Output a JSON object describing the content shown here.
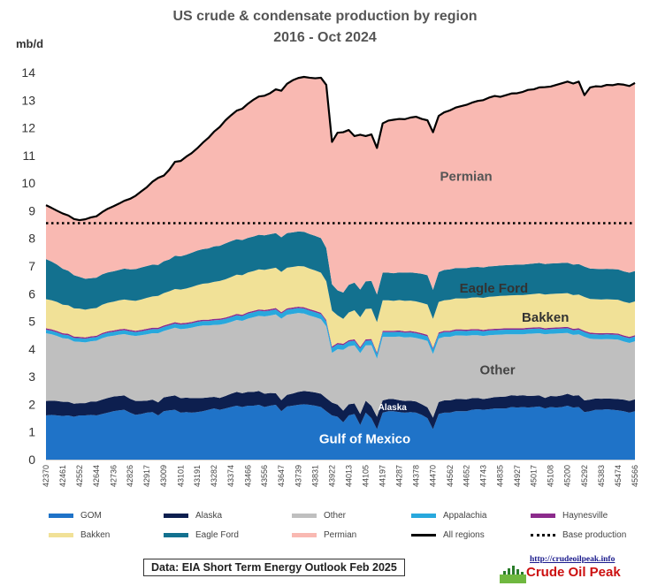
{
  "chart_data": {
    "type": "area",
    "title": "US crude & condensate production by region",
    "subtitle": "2016 - Oct 2024",
    "ylabel": "mb/d",
    "ylim": [
      0,
      14
    ],
    "y_ticks": [
      "0",
      "1",
      "2",
      "3",
      "4",
      "5",
      "6",
      "7",
      "8",
      "9",
      "10",
      "11",
      "12",
      "13",
      "14"
    ],
    "x_tick_labels": [
      "42370",
      "42461",
      "42552",
      "42644",
      "42736",
      "42826",
      "42917",
      "43009",
      "43101",
      "43191",
      "43282",
      "43374",
      "43466",
      "43556",
      "43647",
      "43739",
      "43831",
      "43922",
      "44013",
      "44105",
      "44197",
      "44287",
      "44378",
      "44470",
      "44562",
      "44652",
      "44743",
      "44835",
      "44927",
      "45017",
      "45108",
      "45200",
      "45292",
      "45383",
      "45474",
      "45566"
    ],
    "x": [
      42370,
      42401,
      42430,
      42461,
      42491,
      42522,
      42552,
      42583,
      42614,
      42644,
      42675,
      42705,
      42736,
      42767,
      42795,
      42826,
      42856,
      42887,
      42917,
      42948,
      42979,
      43009,
      43040,
      43070,
      43101,
      43132,
      43160,
      43191,
      43221,
      43252,
      43282,
      43313,
      43344,
      43374,
      43405,
      43435,
      43466,
      43497,
      43525,
      43556,
      43586,
      43617,
      43647,
      43678,
      43709,
      43739,
      43770,
      43800,
      43831,
      43862,
      43891,
      43922,
      43952,
      43983,
      44013,
      44044,
      44075,
      44105,
      44136,
      44166,
      44197,
      44228,
      44256,
      44287,
      44317,
      44348,
      44378,
      44409,
      44440,
      44470,
      44501,
      44531,
      44562,
      44593,
      44621,
      44652,
      44682,
      44713,
      44743,
      44774,
      44805,
      44835,
      44866,
      44896,
      44927,
      44958,
      44986,
      45017,
      45047,
      45078,
      45108,
      45139,
      45170,
      45200,
      45231,
      45261,
      45292,
      45323,
      45352,
      45383,
      45413,
      45444,
      45474,
      45505,
      45536,
      45566
    ],
    "stack_order": [
      "GOM",
      "Alaska",
      "Other",
      "Appalachia",
      "Haynesville",
      "Bakken",
      "Eagle Ford",
      "Permian"
    ],
    "series": [
      {
        "name": "GOM",
        "color": "#1f73c8",
        "values": [
          1.6,
          1.62,
          1.6,
          1.58,
          1.6,
          1.55,
          1.6,
          1.6,
          1.62,
          1.6,
          1.65,
          1.7,
          1.75,
          1.78,
          1.8,
          1.7,
          1.62,
          1.65,
          1.7,
          1.72,
          1.6,
          1.75,
          1.78,
          1.8,
          1.7,
          1.72,
          1.7,
          1.72,
          1.75,
          1.8,
          1.85,
          1.8,
          1.85,
          1.9,
          1.95,
          1.9,
          1.95,
          1.95,
          1.98,
          1.9,
          1.95,
          1.98,
          1.75,
          1.92,
          1.95,
          1.98,
          2.0,
          1.98,
          1.95,
          1.9,
          1.75,
          1.6,
          1.55,
          1.35,
          1.6,
          1.65,
          1.25,
          1.7,
          1.5,
          1.1,
          1.7,
          1.75,
          1.75,
          1.72,
          1.7,
          1.72,
          1.7,
          1.62,
          1.5,
          1.1,
          1.65,
          1.7,
          1.7,
          1.75,
          1.75,
          1.75,
          1.8,
          1.82,
          1.8,
          1.82,
          1.85,
          1.85,
          1.85,
          1.9,
          1.88,
          1.9,
          1.88,
          1.9,
          1.92,
          1.85,
          1.9,
          1.88,
          1.9,
          1.95,
          1.88,
          1.9,
          1.72,
          1.75,
          1.8,
          1.8,
          1.82,
          1.8,
          1.78,
          1.75,
          1.7,
          1.75
        ]
      },
      {
        "name": "Alaska",
        "color": "#0d1f4f",
        "values": [
          0.52,
          0.51,
          0.52,
          0.51,
          0.49,
          0.47,
          0.44,
          0.44,
          0.48,
          0.5,
          0.52,
          0.53,
          0.53,
          0.52,
          0.52,
          0.5,
          0.5,
          0.47,
          0.43,
          0.45,
          0.47,
          0.5,
          0.51,
          0.52,
          0.52,
          0.52,
          0.52,
          0.5,
          0.48,
          0.45,
          0.42,
          0.43,
          0.45,
          0.48,
          0.5,
          0.5,
          0.5,
          0.5,
          0.5,
          0.48,
          0.46,
          0.42,
          0.4,
          0.42,
          0.44,
          0.47,
          0.48,
          0.48,
          0.48,
          0.48,
          0.47,
          0.46,
          0.44,
          0.42,
          0.4,
          0.38,
          0.4,
          0.43,
          0.44,
          0.45,
          0.44,
          0.44,
          0.44,
          0.43,
          0.42,
          0.41,
          0.4,
          0.38,
          0.39,
          0.42,
          0.43,
          0.44,
          0.44,
          0.44,
          0.44,
          0.43,
          0.42,
          0.41,
          0.39,
          0.4,
          0.41,
          0.42,
          0.43,
          0.43,
          0.43,
          0.43,
          0.42,
          0.41,
          0.4,
          0.38,
          0.4,
          0.41,
          0.42,
          0.43,
          0.43,
          0.43,
          0.42,
          0.42,
          0.41,
          0.4,
          0.39,
          0.4,
          0.41,
          0.42,
          0.42,
          0.43
        ]
      },
      {
        "name": "Other",
        "color": "#bfbfbf",
        "values": [
          2.45,
          2.4,
          2.35,
          2.3,
          2.28,
          2.25,
          2.22,
          2.2,
          2.18,
          2.2,
          2.22,
          2.22,
          2.2,
          2.22,
          2.22,
          2.3,
          2.35,
          2.38,
          2.4,
          2.4,
          2.5,
          2.4,
          2.42,
          2.45,
          2.5,
          2.5,
          2.55,
          2.6,
          2.62,
          2.6,
          2.6,
          2.65,
          2.62,
          2.6,
          2.6,
          2.62,
          2.65,
          2.7,
          2.72,
          2.8,
          2.8,
          2.85,
          2.95,
          2.9,
          2.88,
          2.85,
          2.8,
          2.75,
          2.72,
          2.7,
          2.6,
          1.8,
          2.0,
          2.2,
          2.1,
          2.1,
          2.2,
          2.0,
          2.2,
          2.1,
          2.3,
          2.25,
          2.25,
          2.3,
          2.3,
          2.3,
          2.3,
          2.35,
          2.4,
          2.3,
          2.3,
          2.3,
          2.3,
          2.3,
          2.3,
          2.3,
          2.28,
          2.27,
          2.28,
          2.28,
          2.25,
          2.25,
          2.25,
          2.2,
          2.22,
          2.2,
          2.25,
          2.25,
          2.25,
          2.3,
          2.25,
          2.27,
          2.25,
          2.2,
          2.2,
          2.2,
          2.3,
          2.2,
          2.15,
          2.15,
          2.15,
          2.15,
          2.15,
          2.1,
          2.1,
          2.1
        ]
      },
      {
        "name": "Appalachia",
        "color": "#28a8dd",
        "values": [
          0.13,
          0.13,
          0.13,
          0.13,
          0.13,
          0.13,
          0.13,
          0.13,
          0.13,
          0.13,
          0.14,
          0.14,
          0.14,
          0.14,
          0.14,
          0.14,
          0.14,
          0.14,
          0.15,
          0.15,
          0.15,
          0.15,
          0.15,
          0.15,
          0.16,
          0.16,
          0.16,
          0.16,
          0.16,
          0.16,
          0.17,
          0.17,
          0.17,
          0.17,
          0.17,
          0.17,
          0.18,
          0.18,
          0.18,
          0.18,
          0.18,
          0.18,
          0.18,
          0.18,
          0.18,
          0.18,
          0.18,
          0.18,
          0.18,
          0.18,
          0.18,
          0.18,
          0.18,
          0.17,
          0.17,
          0.17,
          0.17,
          0.17,
          0.17,
          0.17,
          0.17,
          0.17,
          0.17,
          0.17,
          0.17,
          0.17,
          0.17,
          0.17,
          0.17,
          0.17,
          0.17,
          0.17,
          0.17,
          0.17,
          0.17,
          0.17,
          0.17,
          0.17,
          0.17,
          0.17,
          0.17,
          0.17,
          0.17,
          0.17,
          0.17,
          0.17,
          0.17,
          0.17,
          0.17,
          0.17,
          0.17,
          0.17,
          0.17,
          0.17,
          0.17,
          0.17,
          0.17,
          0.17,
          0.17,
          0.17,
          0.17,
          0.17,
          0.17,
          0.17,
          0.17,
          0.17
        ]
      },
      {
        "name": "Haynesville",
        "color": "#8c2b8c",
        "values": [
          0.05,
          0.05,
          0.05,
          0.05,
          0.05,
          0.05,
          0.05,
          0.05,
          0.05,
          0.05,
          0.05,
          0.05,
          0.05,
          0.05,
          0.05,
          0.05,
          0.05,
          0.05,
          0.05,
          0.05,
          0.05,
          0.05,
          0.05,
          0.05,
          0.05,
          0.05,
          0.05,
          0.05,
          0.05,
          0.05,
          0.05,
          0.05,
          0.05,
          0.05,
          0.05,
          0.05,
          0.05,
          0.05,
          0.05,
          0.05,
          0.05,
          0.05,
          0.05,
          0.05,
          0.05,
          0.05,
          0.05,
          0.05,
          0.05,
          0.05,
          0.05,
          0.05,
          0.05,
          0.05,
          0.05,
          0.05,
          0.05,
          0.05,
          0.05,
          0.05,
          0.05,
          0.05,
          0.05,
          0.05,
          0.05,
          0.05,
          0.05,
          0.05,
          0.05,
          0.05,
          0.05,
          0.05,
          0.05,
          0.05,
          0.05,
          0.05,
          0.05,
          0.05,
          0.05,
          0.05,
          0.05,
          0.05,
          0.05,
          0.05,
          0.05,
          0.05,
          0.05,
          0.05,
          0.05,
          0.05,
          0.05,
          0.05,
          0.05,
          0.05,
          0.05,
          0.05,
          0.05,
          0.05,
          0.05,
          0.05,
          0.05,
          0.05,
          0.05,
          0.05,
          0.05,
          0.05
        ]
      },
      {
        "name": "Bakken",
        "color": "#f1e197",
        "values": [
          1.05,
          1.05,
          1.05,
          1.03,
          1.03,
          1.02,
          1.02,
          1.0,
          1.0,
          1.0,
          1.02,
          1.03,
          1.04,
          1.05,
          1.06,
          1.07,
          1.08,
          1.1,
          1.12,
          1.13,
          1.15,
          1.17,
          1.18,
          1.2,
          1.22,
          1.24,
          1.26,
          1.28,
          1.3,
          1.32,
          1.34,
          1.36,
          1.38,
          1.4,
          1.42,
          1.43,
          1.44,
          1.44,
          1.45,
          1.45,
          1.46,
          1.46,
          1.46,
          1.47,
          1.47,
          1.47,
          1.48,
          1.47,
          1.46,
          1.45,
          1.4,
          1.3,
          1.0,
          0.9,
          1.0,
          1.05,
          1.08,
          1.1,
          1.1,
          1.1,
          1.1,
          1.1,
          1.08,
          1.1,
          1.1,
          1.1,
          1.1,
          1.1,
          1.1,
          1.05,
          1.1,
          1.1,
          1.12,
          1.12,
          1.12,
          1.13,
          1.14,
          1.15,
          1.16,
          1.17,
          1.17,
          1.18,
          1.18,
          1.19,
          1.2,
          1.2,
          1.2,
          1.21,
          1.22,
          1.22,
          1.22,
          1.22,
          1.22,
          1.22,
          1.22,
          1.22,
          1.22,
          1.22,
          1.22,
          1.22,
          1.22,
          1.22,
          1.22,
          1.22,
          1.22,
          1.22
        ]
      },
      {
        "name": "Eagle Ford",
        "color": "#13718f",
        "values": [
          1.45,
          1.4,
          1.35,
          1.3,
          1.25,
          1.2,
          1.15,
          1.12,
          1.1,
          1.1,
          1.1,
          1.1,
          1.1,
          1.1,
          1.12,
          1.12,
          1.15,
          1.16,
          1.15,
          1.15,
          1.12,
          1.15,
          1.15,
          1.2,
          1.2,
          1.22,
          1.24,
          1.25,
          1.25,
          1.26,
          1.28,
          1.27,
          1.3,
          1.3,
          1.28,
          1.27,
          1.25,
          1.25,
          1.25,
          1.25,
          1.25,
          1.25,
          1.25,
          1.25,
          1.25,
          1.25,
          1.25,
          1.25,
          1.25,
          1.25,
          1.2,
          0.95,
          0.9,
          0.95,
          1.0,
          1.0,
          1.0,
          1.0,
          1.0,
          1.0,
          1.0,
          1.0,
          1.0,
          1.0,
          1.02,
          1.02,
          1.03,
          1.05,
          1.06,
          1.05,
          1.08,
          1.1,
          1.1,
          1.1,
          1.1,
          1.1,
          1.1,
          1.1,
          1.1,
          1.1,
          1.1,
          1.1,
          1.1,
          1.1,
          1.1,
          1.1,
          1.1,
          1.1,
          1.1,
          1.1,
          1.1,
          1.1,
          1.1,
          1.1,
          1.1,
          1.1,
          1.1,
          1.1,
          1.1,
          1.1,
          1.1,
          1.1,
          1.1,
          1.1,
          1.1,
          1.1
        ]
      },
      {
        "name": "Permian",
        "color": "#f9b9b2",
        "values": [
          1.95,
          1.94,
          1.95,
          2.0,
          2.0,
          2.03,
          2.05,
          2.15,
          2.2,
          2.22,
          2.25,
          2.3,
          2.35,
          2.4,
          2.45,
          2.55,
          2.65,
          2.75,
          2.85,
          3.0,
          3.15,
          3.1,
          3.25,
          3.4,
          3.45,
          3.55,
          3.6,
          3.7,
          3.85,
          4.0,
          4.15,
          4.3,
          4.45,
          4.55,
          4.65,
          4.75,
          4.85,
          4.95,
          5.0,
          5.05,
          5.1,
          5.2,
          5.3,
          5.4,
          5.5,
          5.55,
          5.6,
          5.65,
          5.7,
          5.8,
          5.9,
          5.15,
          5.7,
          5.8,
          5.6,
          5.3,
          5.6,
          5.25,
          5.3,
          5.3,
          5.4,
          5.5,
          5.55,
          5.55,
          5.55,
          5.6,
          5.65,
          5.6,
          5.6,
          5.7,
          5.65,
          5.7,
          5.75,
          5.8,
          5.85,
          5.9,
          5.95,
          6.0,
          6.05,
          6.1,
          6.15,
          6.1,
          6.15,
          6.2,
          6.2,
          6.25,
          6.3,
          6.3,
          6.35,
          6.4,
          6.4,
          6.45,
          6.5,
          6.55,
          6.55,
          6.6,
          6.2,
          6.55,
          6.6,
          6.6,
          6.65,
          6.65,
          6.7,
          6.75,
          6.75,
          6.8
        ]
      }
    ],
    "all_regions": {
      "name": "All regions",
      "color": "#000000"
    },
    "base_production": {
      "name": "Base production",
      "value": 8.55
    },
    "annotations": [
      {
        "text": "Permian",
        "x": 44650,
        "y": 10.25,
        "color": "#555555"
      },
      {
        "text": "Eagle Ford",
        "x": 44800,
        "y": 6.2,
        "color": "#333333"
      },
      {
        "text": "Bakken",
        "x": 45080,
        "y": 5.15,
        "color": "#333333"
      },
      {
        "text": "Other",
        "x": 44820,
        "y": 3.25,
        "color": "#444444"
      },
      {
        "text": "Alaska",
        "x": 44250,
        "y": 1.95,
        "color": "#ffffff"
      },
      {
        "text": "Gulf of Mexico",
        "x": 44100,
        "y": 0.75,
        "color": "#ffffff"
      }
    ],
    "legend": [
      {
        "label": "GOM",
        "color": "#1f73c8",
        "kind": "area"
      },
      {
        "label": "Alaska",
        "color": "#0d1f4f",
        "kind": "area"
      },
      {
        "label": "Other",
        "color": "#bfbfbf",
        "kind": "area"
      },
      {
        "label": "Appalachia",
        "color": "#28a8dd",
        "kind": "area"
      },
      {
        "label": "Haynesville",
        "color": "#8c2b8c",
        "kind": "area"
      },
      {
        "label": "Bakken",
        "color": "#f1e197",
        "kind": "area"
      },
      {
        "label": "Eagle Ford",
        "color": "#13718f",
        "kind": "area"
      },
      {
        "label": "Permian",
        "color": "#f9b9b2",
        "kind": "area"
      },
      {
        "label": "All regions",
        "color": "#000000",
        "kind": "line"
      },
      {
        "label": "Base production",
        "color": "#000000",
        "kind": "dots"
      }
    ],
    "legend_position": "bottom",
    "grid": false
  },
  "source_note": "Data: EIA Short Term Energy Outlook Feb 2025",
  "logo": {
    "url_text": "http://crudeoilpeak.info",
    "name": "Crude Oil Peak"
  }
}
